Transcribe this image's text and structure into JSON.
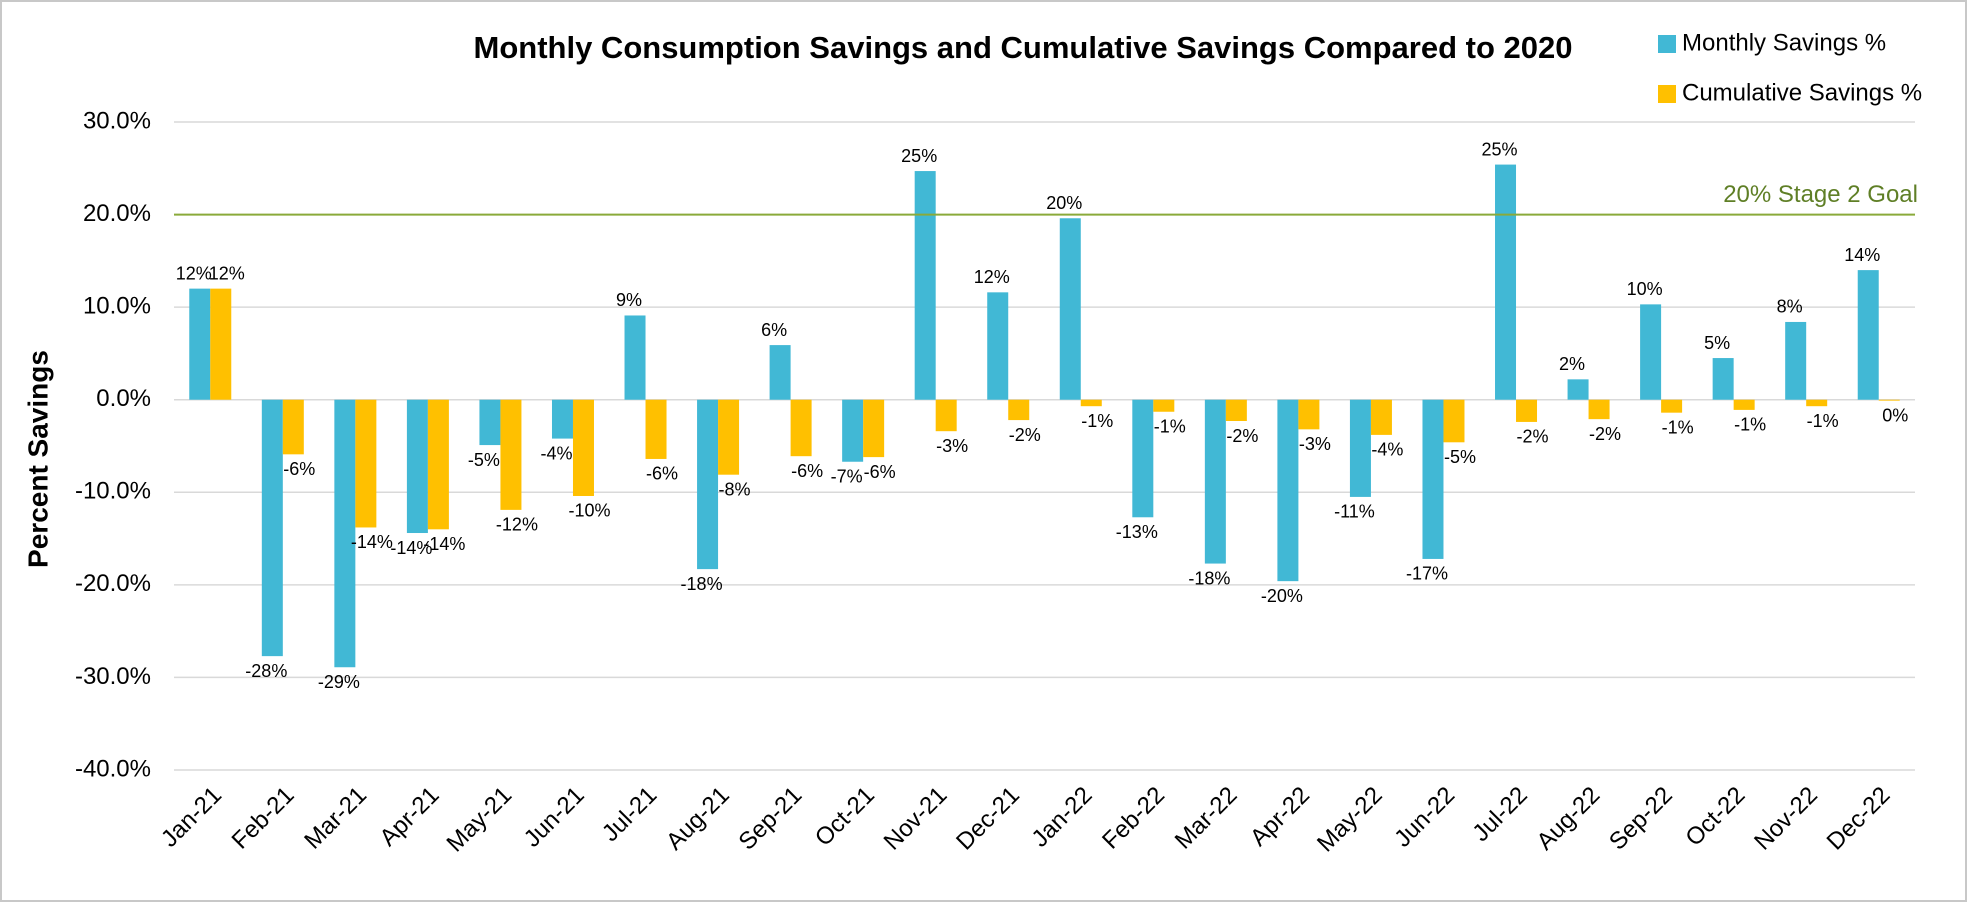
{
  "chart_data": {
    "type": "bar",
    "title": "Monthly Consumption Savings and Cumulative Savings Compared to 2020",
    "y_label": "Percent Savings",
    "categories": [
      "Jan-21",
      "Feb-21",
      "Mar-21",
      "Apr-21",
      "May-21",
      "Jun-21",
      "Jul-21",
      "Aug-21",
      "Sep-21",
      "Oct-21",
      "Nov-21",
      "Dec-21",
      "Jan-22",
      "Feb-22",
      "Mar-22",
      "Apr-22",
      "May-22",
      "Jun-22",
      "Jul-22",
      "Aug-22",
      "Sep-22",
      "Oct-22",
      "Nov-22",
      "Dec-22"
    ],
    "series": [
      {
        "name": "Monthly Savings %",
        "color": "#41b8d5",
        "values": [
          12,
          -27.7,
          -28.9,
          -14.4,
          -4.9,
          -4.2,
          9.1,
          -18.3,
          5.9,
          -6.7,
          24.7,
          11.6,
          19.6,
          -12.7,
          -17.7,
          -19.6,
          -10.5,
          -17.2,
          25.4,
          2.2,
          10.3,
          4.5,
          8.4,
          14
        ],
        "value_labels": [
          "12%",
          "-28%",
          "-29%",
          "-14%",
          "-5%",
          "-4%",
          "9%",
          "-18%",
          "6%",
          "-7%",
          "25%",
          "12%",
          "20%",
          "-13%",
          "-18%",
          "-20%",
          "-11%",
          "-17%",
          "25%",
          "2%",
          "10%",
          "5%",
          "8%",
          "14%"
        ]
      },
      {
        "name": "Cumulative Savings %",
        "color": "#ffc000",
        "values": [
          12,
          -5.9,
          -13.8,
          -14,
          -11.9,
          -10.4,
          -6.4,
          -8.1,
          -6.1,
          -6.2,
          -3.4,
          -2.2,
          -0.7,
          -1.3,
          -2.3,
          -3.2,
          -3.8,
          -4.6,
          -2.4,
          -2.1,
          -1.4,
          -1.1,
          -0.7,
          -0.1
        ],
        "value_labels": [
          "12%",
          "-6%",
          "-14%",
          "-14%",
          "-12%",
          "-10%",
          "-6%",
          "-8%",
          "-6%",
          "-6%",
          "-3%",
          "-2%",
          "-1%",
          "-1%",
          "-2%",
          "-3%",
          "-4%",
          "-5%",
          "-2%",
          "-2%",
          "-1%",
          "-1%",
          "-1%",
          "0%"
        ]
      }
    ],
    "ylim": [
      -40,
      30
    ],
    "yticks": [
      {
        "value": -40,
        "label": "-40.0%"
      },
      {
        "value": -30,
        "label": "-30.0%"
      },
      {
        "value": -20,
        "label": "-20.0%"
      },
      {
        "value": -10,
        "label": "-10.0%"
      },
      {
        "value": 0,
        "label": "0.0%"
      },
      {
        "value": 10,
        "label": "10.0%"
      },
      {
        "value": 20,
        "label": "20.0%"
      },
      {
        "value": 30,
        "label": "30.0%"
      }
    ],
    "grid": true,
    "legend": "top-right",
    "goal_line": {
      "value": 20,
      "label": "20% Stage 2 Goal",
      "color": "#8aaa3a"
    }
  }
}
